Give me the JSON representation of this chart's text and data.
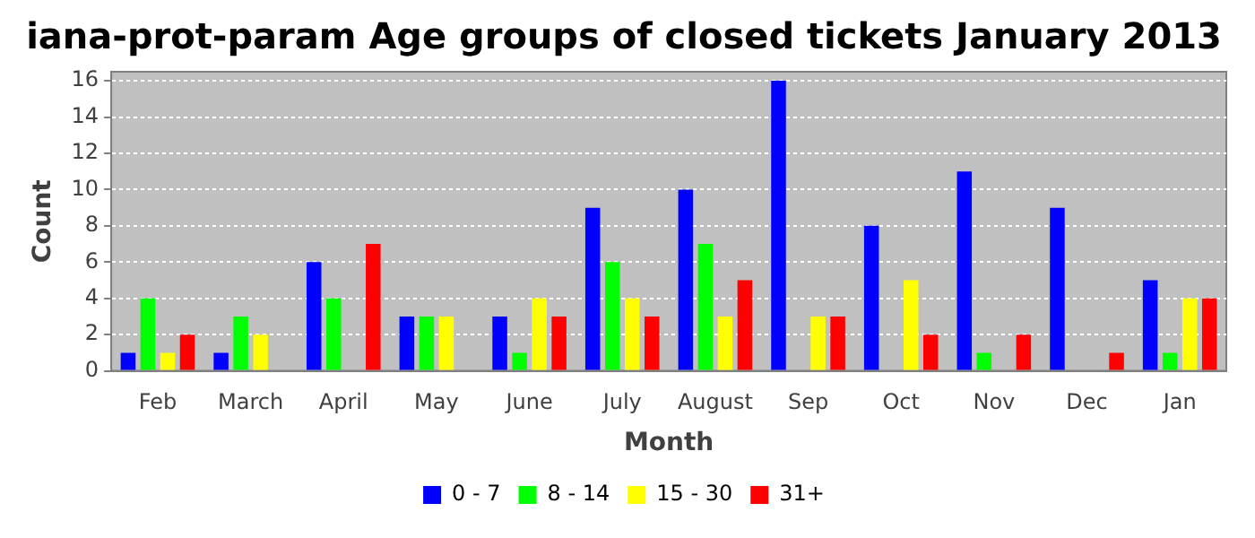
{
  "chart_data": {
    "type": "bar",
    "title": "iana-prot-param Age groups of closed tickets January 2013",
    "xlabel": "Month",
    "ylabel": "Count",
    "categories": [
      "Feb",
      "March",
      "April",
      "May",
      "June",
      "July",
      "August",
      "Sep",
      "Oct",
      "Nov",
      "Dec",
      "Jan"
    ],
    "series": [
      {
        "name": "0 - 7",
        "color": "#0000ff",
        "values": [
          1,
          1,
          6,
          3,
          3,
          9,
          10,
          16,
          8,
          11,
          9,
          5
        ]
      },
      {
        "name": "8 - 14",
        "color": "#00ff00",
        "values": [
          4,
          3,
          4,
          3,
          1,
          6,
          7,
          0,
          0,
          1,
          0,
          1
        ]
      },
      {
        "name": "15 - 30",
        "color": "#ffff00",
        "values": [
          1,
          2,
          0,
          3,
          4,
          4,
          3,
          3,
          5,
          0,
          0,
          4
        ]
      },
      {
        "name": "31+",
        "color": "#ff0000",
        "values": [
          2,
          0,
          7,
          0,
          3,
          3,
          5,
          3,
          2,
          2,
          1,
          4
        ]
      }
    ],
    "ylim": [
      0,
      16.5
    ],
    "yticks": [
      0,
      2,
      4,
      6,
      8,
      10,
      12,
      14,
      16
    ],
    "grid": "y",
    "legend": "bottom"
  }
}
